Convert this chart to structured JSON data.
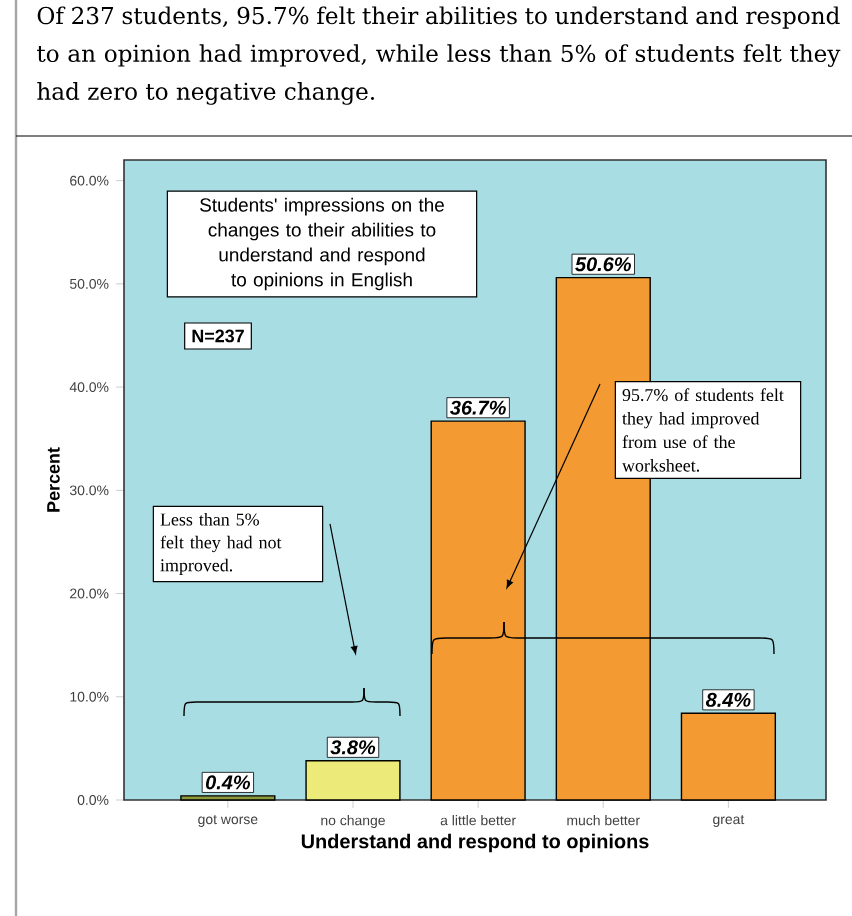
{
  "chart_data": {
    "type": "bar",
    "title": "Of 237 students, 95.7% felt their abilities to understand and respond to an opinion had improved, while less than 5% of students felt they had zero to negative change.",
    "xlabel": "Understand and respond to opinions",
    "ylabel": "Percent",
    "categories": [
      "got worse",
      "no change",
      "a little better",
      "much better",
      "great"
    ],
    "values": [
      0.4,
      3.8,
      36.7,
      50.6,
      8.4
    ],
    "value_labels": [
      "0.4%",
      "3.8%",
      "36.7%",
      "50.6%",
      "8.4%"
    ],
    "colors": [
      "#8c9a3c",
      "#ecea78",
      "#f39a32",
      "#f39a32",
      "#f39a32"
    ],
    "ylim": [
      0,
      62
    ],
    "yticks": [
      {
        "value": 0,
        "label": "0.0%"
      },
      {
        "value": 10,
        "label": "10.0%"
      },
      {
        "value": 20,
        "label": "20.0%"
      },
      {
        "value": 30,
        "label": "30.0%"
      },
      {
        "value": 40,
        "label": "40.0%"
      },
      {
        "value": 50,
        "label": "50.0%"
      },
      {
        "value": 60,
        "label": "60.0%"
      }
    ],
    "annotations": [
      "Students' impressions on the changes to their abilities to understand and respond to opinions in English",
      "N=237",
      "Less than 5% felt they had not improved.",
      "95.7% of students felt they had improved from use of the worksheet."
    ],
    "grid": false
  }
}
